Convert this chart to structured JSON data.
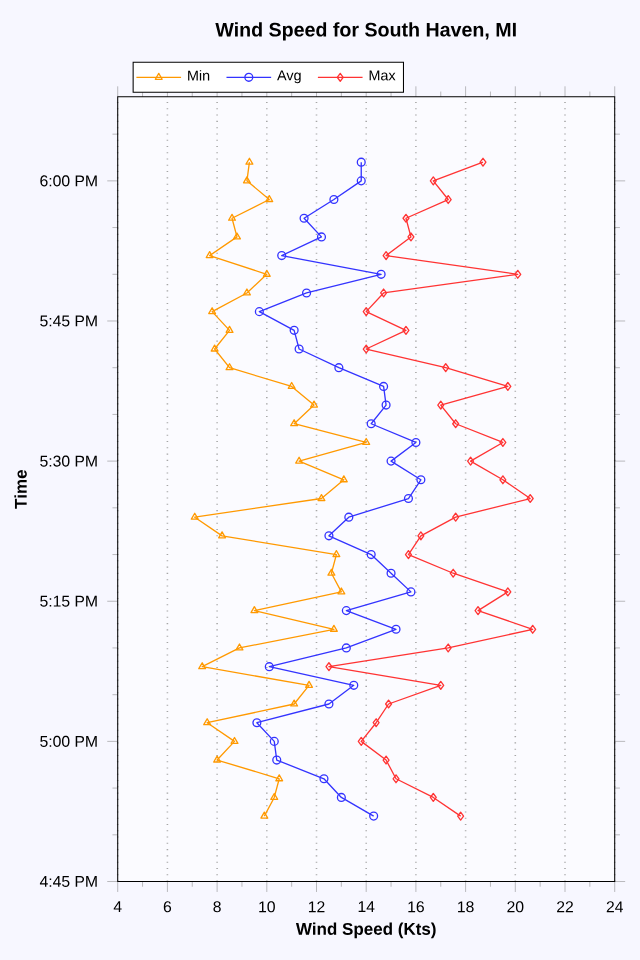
{
  "chart_data": {
    "type": "line",
    "title": "Wind Speed for South Haven, MI",
    "xlabel": "Wind Speed (Kts)",
    "ylabel": "Time",
    "xlim": [
      4,
      24
    ],
    "ylim": [
      16.75,
      18.15
    ],
    "xticks": [
      4,
      {
        "value": 5,
        "label": null
      },
      6,
      {
        "value": 7,
        "label": null
      },
      8,
      {
        "value": 9,
        "label": null
      },
      10,
      {
        "value": 11,
        "label": null
      },
      12,
      {
        "value": 13,
        "label": null
      },
      14,
      {
        "value": 15,
        "label": null
      },
      16,
      {
        "value": 17,
        "label": null
      },
      18,
      {
        "value": 19,
        "label": null
      },
      20,
      {
        "value": 21,
        "label": null
      },
      22,
      {
        "value": 23,
        "label": null
      },
      24
    ],
    "yticks": [
      {
        "value": 16.75,
        "label": "4:45 PM"
      },
      {
        "value": 16.8333,
        "label": null
      },
      {
        "value": 16.9167,
        "label": null
      },
      {
        "value": 17,
        "label": "5:00 PM"
      },
      {
        "value": 17.0833,
        "label": null
      },
      {
        "value": 17.1667,
        "label": null
      },
      {
        "value": 17.25,
        "label": "5:15 PM"
      },
      {
        "value": 17.3333,
        "label": null
      },
      {
        "value": 17.4167,
        "label": null
      },
      {
        "value": 17.5,
        "label": "5:30 PM"
      },
      {
        "value": 17.5833,
        "label": null
      },
      {
        "value": 17.6667,
        "label": null
      },
      {
        "value": 17.75,
        "label": "5:45 PM"
      },
      {
        "value": 17.8333,
        "label": null
      },
      {
        "value": 17.9167,
        "label": null
      },
      {
        "value": 18,
        "label": "6:00 PM"
      },
      {
        "value": 18.0833,
        "label": null
      }
    ],
    "grid": "x",
    "legend": "top left",
    "series": [
      {
        "name": "Min",
        "color": "#ff9900",
        "marker": "triangle",
        "x": [
          9.9,
          10.3,
          10.5,
          8.0,
          8.7,
          7.6,
          11.1,
          11.7,
          7.4,
          8.9,
          12.7,
          9.5,
          13.0,
          12.6,
          12.8,
          8.2,
          7.1,
          12.2,
          13.1,
          11.3,
          14.0,
          11.1,
          11.9,
          11.0,
          8.5,
          7.9,
          8.5,
          7.8,
          9.2,
          10.0,
          7.7,
          8.8,
          8.6,
          10.1,
          9.2,
          9.3
        ],
        "values": [
          16.8667,
          16.9,
          16.9333,
          16.9667,
          17,
          17.0333,
          17.0667,
          17.1,
          17.1333,
          17.1667,
          17.2,
          17.2333,
          17.2667,
          17.3,
          17.3333,
          17.3667,
          17.4,
          17.4333,
          17.4667,
          17.5,
          17.5333,
          17.5667,
          17.6,
          17.6333,
          17.6667,
          17.7,
          17.7333,
          17.7667,
          17.8,
          17.8333,
          17.8667,
          17.9,
          17.9333,
          17.9667,
          18,
          18.0333
        ]
      },
      {
        "name": "Avg",
        "color": "#3333ff",
        "marker": "circle",
        "x": [
          14.3,
          13.0,
          12.3,
          10.4,
          10.3,
          9.6,
          12.5,
          13.5,
          10.1,
          13.2,
          15.2,
          13.2,
          15.8,
          15.0,
          14.2,
          12.5,
          13.3,
          15.7,
          16.2,
          15.0,
          16.0,
          14.2,
          14.8,
          14.7,
          12.9,
          11.3,
          11.1,
          9.7,
          11.6,
          14.6,
          10.6,
          12.2,
          11.5,
          12.7,
          13.8,
          13.8
        ],
        "values": [
          16.8667,
          16.9,
          16.9333,
          16.9667,
          17,
          17.0333,
          17.0667,
          17.1,
          17.1333,
          17.1667,
          17.2,
          17.2333,
          17.2667,
          17.3,
          17.3333,
          17.3667,
          17.4,
          17.4333,
          17.4667,
          17.5,
          17.5333,
          17.5667,
          17.6,
          17.6333,
          17.6667,
          17.7,
          17.7333,
          17.7667,
          17.8,
          17.8333,
          17.8667,
          17.9,
          17.9333,
          17.9667,
          18,
          18.0333
        ]
      },
      {
        "name": "Max",
        "color": "#ff3333",
        "marker": "diamond",
        "x": [
          17.8,
          16.7,
          15.2,
          14.8,
          13.8,
          14.4,
          14.9,
          17.0,
          12.5,
          17.3,
          20.7,
          18.5,
          19.7,
          17.5,
          15.7,
          16.2,
          17.6,
          20.6,
          19.5,
          18.2,
          19.5,
          17.6,
          17.0,
          19.7,
          17.2,
          14.0,
          15.6,
          14.0,
          14.7,
          20.1,
          14.8,
          15.8,
          15.6,
          17.3,
          16.7,
          18.7
        ],
        "values": [
          16.8667,
          16.9,
          16.9333,
          16.9667,
          17,
          17.0333,
          17.0667,
          17.1,
          17.1333,
          17.1667,
          17.2,
          17.2333,
          17.2667,
          17.3,
          17.3333,
          17.3667,
          17.4,
          17.4333,
          17.4667,
          17.5,
          17.5333,
          17.5667,
          17.6,
          17.6333,
          17.6667,
          17.7,
          17.7333,
          17.7667,
          17.8,
          17.8333,
          17.8667,
          17.9,
          17.9333,
          17.9667,
          18,
          18.0333
        ]
      }
    ]
  }
}
